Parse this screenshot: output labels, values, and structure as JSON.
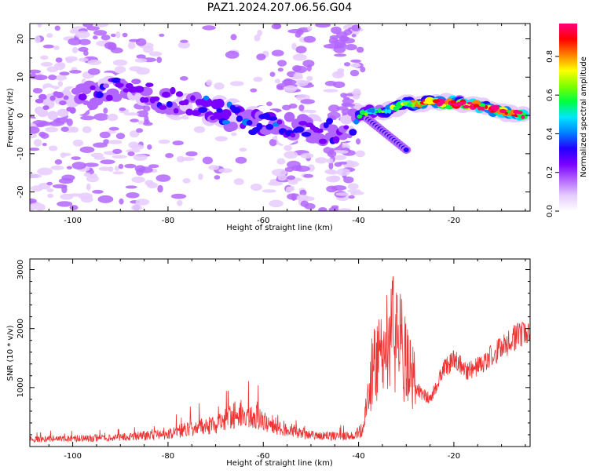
{
  "title": "PAZ1.2024.207.06.56.G04",
  "chart_data": [
    {
      "type": "heatmap",
      "name": "spectrogram",
      "xlabel": "Height of straight line (km)",
      "ylabel": "Frequency (Hz)",
      "xlim": [
        -109,
        -4
      ],
      "ylim": [
        -25,
        24
      ],
      "xticks": [
        -100,
        -80,
        -60,
        -40,
        -20
      ],
      "yticks": [
        -20,
        -10,
        0,
        10,
        20
      ],
      "colorbar": {
        "label": "Normalized spectral amplitude",
        "range": [
          0,
          0.97
        ],
        "ticks": [
          0.0,
          0.2,
          0.4,
          0.6,
          0.8
        ],
        "colormap": [
          "#ffffff",
          "#e6ccff",
          "#b366ff",
          "#7a00ff",
          "#2200ff",
          "#0080ff",
          "#00e5ff",
          "#00ff40",
          "#7fff00",
          "#ffff00",
          "#ff8000",
          "#ff0000",
          "#ff0080"
        ]
      },
      "ridge": {
        "x": [
          -107,
          -100,
          -95,
          -90,
          -85,
          -80,
          -75,
          -70,
          -65,
          -60,
          -55,
          -50,
          -45,
          -42,
          -40,
          -38,
          -35,
          -30,
          -25,
          -20,
          -15,
          -10,
          -5
        ],
        "y": [
          2,
          4,
          6,
          8,
          6,
          4,
          3,
          1,
          -1,
          -2,
          -3,
          -4,
          -4,
          -3,
          0,
          1,
          1,
          3,
          3.5,
          3.2,
          2.5,
          1,
          0
        ],
        "amplitude": [
          0.15,
          0.2,
          0.25,
          0.25,
          0.25,
          0.3,
          0.3,
          0.35,
          0.35,
          0.35,
          0.3,
          0.3,
          0.3,
          0.25,
          0.4,
          0.45,
          0.45,
          0.6,
          0.75,
          0.9,
          0.85,
          0.8,
          0.75
        ]
      },
      "side_branch": {
        "x": [
          -38,
          -36,
          -34,
          -32,
          -30
        ],
        "y": [
          -1,
          -3,
          -5,
          -7,
          -9
        ]
      }
    },
    {
      "type": "line",
      "name": "snr",
      "xlabel": "Height of straight line (km)",
      "ylabel": "SNR (10 * v/v)",
      "xlim": [
        -109,
        -4
      ],
      "ylim": [
        0,
        3180
      ],
      "xticks": [
        -100,
        -80,
        -60,
        -40,
        -20
      ],
      "yticks": [
        1000,
        2000,
        3000
      ],
      "color": "#ee3333",
      "profile": {
        "x": [
          -109,
          -100,
          -90,
          -80,
          -75,
          -70,
          -65,
          -62,
          -60,
          -56,
          -50,
          -45,
          -41,
          -39,
          -37,
          -35,
          -33,
          -31,
          -29,
          -27,
          -25,
          -22,
          -20,
          -17,
          -14,
          -10,
          -7,
          -5,
          -4
        ],
        "y": [
          120,
          130,
          150,
          200,
          300,
          350,
          550,
          500,
          420,
          300,
          180,
          170,
          170,
          300,
          1300,
          1500,
          1900,
          1600,
          1100,
          900,
          800,
          1300,
          1450,
          1250,
          1400,
          1650,
          1850,
          1950,
          1800
        ]
      }
    }
  ]
}
